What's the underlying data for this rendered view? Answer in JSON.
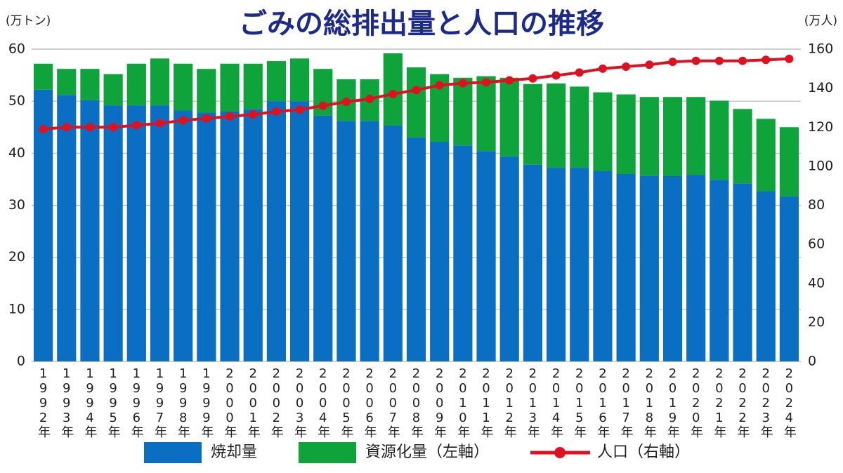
{
  "chart_data": {
    "type": "bar",
    "stacked": true,
    "title": "ごみの総排出量と人口の推移",
    "y_label": "(万トン)",
    "y2_label": "(万人)",
    "categories": [
      "1992年",
      "1993年",
      "1994年",
      "1995年",
      "1996年",
      "1997年",
      "1998年",
      "1999年",
      "2000年",
      "2001年",
      "2002年",
      "2003年",
      "2004年",
      "2005年",
      "2006年",
      "2007年",
      "2008年",
      "2009年",
      "2010年",
      "2011年",
      "2012年",
      "2013年",
      "2014年",
      "2015年",
      "2016年",
      "2017年",
      "2018年",
      "2019年",
      "2020年",
      "2021年",
      "2022年",
      "2023年",
      "2024年"
    ],
    "series": [
      {
        "name": "焼却量",
        "type": "bar",
        "color": "#0a6fc2",
        "values": [
          52.2,
          51.2,
          50.2,
          49.2,
          49.2,
          49.2,
          48.2,
          47.8,
          48.0,
          48.5,
          50.0,
          50.0,
          47.2,
          46.2,
          46.2,
          45.3,
          43.0,
          42.2,
          41.5,
          40.4,
          39.4,
          37.8,
          37.2,
          37.2,
          36.6,
          36.0,
          35.7,
          35.6,
          35.8,
          34.9,
          34.2,
          32.7,
          31.7
        ]
      },
      {
        "name": "資源化量（左軸）",
        "type": "bar",
        "color": "#0ea33b",
        "values": [
          5.0,
          5.0,
          6.0,
          6.0,
          8.0,
          9.0,
          9.0,
          8.4,
          9.2,
          8.7,
          7.7,
          8.2,
          9.0,
          8.0,
          8.0,
          13.9,
          13.5,
          13.0,
          13.0,
          14.4,
          15.1,
          15.5,
          16.2,
          15.6,
          15.1,
          15.3,
          15.1,
          15.2,
          15.0,
          15.2,
          14.3,
          13.9,
          13.3
        ]
      },
      {
        "name": "人口（右軸）",
        "type": "line",
        "axis": "y2",
        "color": "#e0111f",
        "values": [
          119,
          120,
          120,
          120,
          121,
          122,
          123.5,
          124.5,
          125.5,
          126.5,
          128,
          129,
          131,
          133,
          134.5,
          137,
          139,
          141.5,
          142.5,
          143,
          144,
          145,
          146.5,
          148,
          150,
          151,
          152,
          153.5,
          154,
          154,
          154,
          154.5,
          155
        ]
      }
    ],
    "ylim": [
      0,
      60
    ],
    "yticks": [
      0,
      10,
      20,
      30,
      40,
      50,
      60
    ],
    "y2lim": [
      0,
      160
    ],
    "y2ticks": [
      0,
      20,
      40,
      60,
      80,
      100,
      120,
      140,
      160
    ],
    "grid": true,
    "legend": "bottom"
  }
}
